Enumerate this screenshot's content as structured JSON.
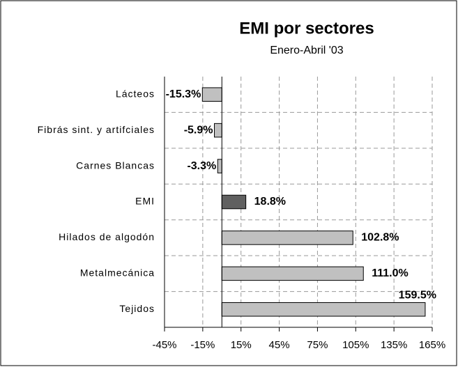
{
  "chart_data": {
    "type": "bar",
    "orientation": "horizontal",
    "title": "EMI por sectores",
    "subtitle": "Enero-Abril '03",
    "categories": [
      "Lácteos",
      "Fibrás sint. y artifciales",
      "Carnes Blancas",
      "EMI",
      "Hilados de algodón",
      "Metalmecánica",
      "Tejidos"
    ],
    "values": [
      -15.3,
      -5.9,
      -3.3,
      18.8,
      102.8,
      111.0,
      159.5
    ],
    "value_labels": [
      "-15.3%",
      "-5.9%",
      "-3.3%",
      "18.8%",
      "102.8%",
      "111.0%",
      "159.5%"
    ],
    "colors": [
      "#c0c0c0",
      "#c0c0c0",
      "#c0c0c0",
      "#606060",
      "#c0c0c0",
      "#c0c0c0",
      "#c0c0c0"
    ],
    "xlim": [
      -45,
      165
    ],
    "xticks": [
      {
        "value": -45,
        "label": "-45%"
      },
      {
        "value": -15,
        "label": "-15%"
      },
      {
        "value": 15,
        "label": "15%"
      },
      {
        "value": 45,
        "label": "45%"
      },
      {
        "value": 75,
        "label": "75%"
      },
      {
        "value": 105,
        "label": "105%"
      },
      {
        "value": 135,
        "label": "135%"
      },
      {
        "value": 165,
        "label": "165%"
      }
    ],
    "grid": true
  }
}
